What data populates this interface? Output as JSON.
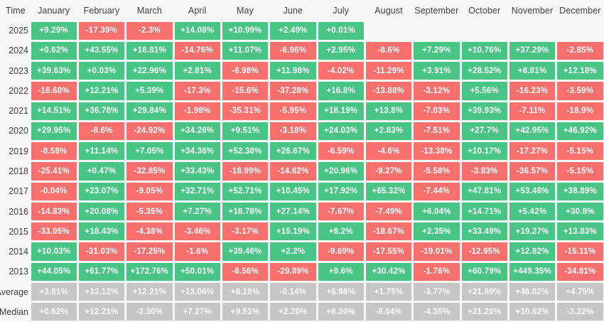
{
  "colors": {
    "positive": "#48c585",
    "negative": "#f7706e",
    "stat": "#c6c6c6",
    "background": "#f7f7f8",
    "cell_text": "#ffffff",
    "label_text": "#3f3f3f"
  },
  "chart_data": {
    "type": "heatmap",
    "corner_label": "Time",
    "categories": [
      "January",
      "February",
      "March",
      "April",
      "May",
      "June",
      "July",
      "August",
      "September",
      "October",
      "November",
      "December"
    ],
    "value_encoding": "monthly percent return; green = positive, red = negative, gray = summary rows, blank = no data",
    "rows": [
      {
        "label": "2025",
        "type": "year",
        "values": [
          "+9.29%",
          "-17.39%",
          "-2.3%",
          "+14.08%",
          "+10.99%",
          "+2.49%",
          "+0.01%",
          "",
          "",
          "",
          "",
          ""
        ]
      },
      {
        "label": "2024",
        "type": "year",
        "values": [
          "+0.62%",
          "+43.55%",
          "+16.81%",
          "-14.76%",
          "+11.07%",
          "-6.96%",
          "+2.95%",
          "-8.6%",
          "+7.29%",
          "+10.76%",
          "+37.29%",
          "-2.85%"
        ]
      },
      {
        "label": "2023",
        "type": "year",
        "values": [
          "+39.63%",
          "+0.03%",
          "+22.96%",
          "+2.81%",
          "-6.98%",
          "+11.98%",
          "-4.02%",
          "-11.29%",
          "+3.91%",
          "+28.52%",
          "+8.81%",
          "+12.18%"
        ]
      },
      {
        "label": "2022",
        "type": "year",
        "values": [
          "-16.68%",
          "+12.21%",
          "+5.39%",
          "-17.3%",
          "-15.6%",
          "-37.28%",
          "+16.8%",
          "-13.88%",
          "-3.12%",
          "+5.56%",
          "-16.23%",
          "-3.59%"
        ]
      },
      {
        "label": "2021",
        "type": "year",
        "values": [
          "+14.51%",
          "+36.78%",
          "+29.84%",
          "-1.98%",
          "-35.31%",
          "-5.95%",
          "+18.19%",
          "+13.8%",
          "-7.03%",
          "+39.93%",
          "-7.11%",
          "-18.9%"
        ]
      },
      {
        "label": "2020",
        "type": "year",
        "values": [
          "+29.95%",
          "-8.6%",
          "-24.92%",
          "+34.26%",
          "+9.51%",
          "-3.18%",
          "+24.03%",
          "+2.83%",
          "-7.51%",
          "+27.7%",
          "+42.95%",
          "+46.92%"
        ]
      },
      {
        "label": "2019",
        "type": "year",
        "values": [
          "-8.58%",
          "+11.14%",
          "+7.05%",
          "+34.36%",
          "+52.38%",
          "+26.67%",
          "-6.59%",
          "-4.6%",
          "-13.38%",
          "+10.17%",
          "-17.27%",
          "-5.15%"
        ]
      },
      {
        "label": "2018",
        "type": "year",
        "values": [
          "-25.41%",
          "+0.47%",
          "-32.85%",
          "+33.43%",
          "-18.99%",
          "-14.62%",
          "+20.96%",
          "-9.27%",
          "-5.58%",
          "-3.83%",
          "-36.57%",
          "-5.15%"
        ]
      },
      {
        "label": "2017",
        "type": "year",
        "values": [
          "-0.04%",
          "+23.07%",
          "-9.05%",
          "+32.71%",
          "+52.71%",
          "+10.45%",
          "+17.92%",
          "+65.32%",
          "-7.44%",
          "+47.81%",
          "+53.48%",
          "+38.89%"
        ]
      },
      {
        "label": "2016",
        "type": "year",
        "values": [
          "-14.83%",
          "+20.08%",
          "-5.35%",
          "+7.27%",
          "+18.78%",
          "+27.14%",
          "-7.67%",
          "-7.49%",
          "+6.04%",
          "+14.71%",
          "+5.42%",
          "+30.8%"
        ]
      },
      {
        "label": "2015",
        "type": "year",
        "values": [
          "-33.05%",
          "+18.43%",
          "-4.38%",
          "-3.46%",
          "-3.17%",
          "+15.19%",
          "+8.2%",
          "-18.67%",
          "+2.35%",
          "+33.49%",
          "+19.27%",
          "+13.83%"
        ]
      },
      {
        "label": "2014",
        "type": "year",
        "values": [
          "+10.03%",
          "-31.03%",
          "-17.25%",
          "-1.6%",
          "+39.46%",
          "+2.2%",
          "-9.69%",
          "-17.55%",
          "-19.01%",
          "-12.95%",
          "+12.82%",
          "-15.11%"
        ]
      },
      {
        "label": "2013",
        "type": "year",
        "values": [
          "+44.05%",
          "+61.77%",
          "+172.76%",
          "+50.01%",
          "-8.56%",
          "-29.89%",
          "+9.6%",
          "+30.42%",
          "-1.76%",
          "+60.79%",
          "+449.35%",
          "-34.81%"
        ]
      },
      {
        "label": "Average",
        "type": "stat",
        "values": [
          "+3.81%",
          "+13.12%",
          "+12.21%",
          "+13.06%",
          "+8.18%",
          "-0.14%",
          "+6.98%",
          "+1.75%",
          "-3.77%",
          "+21.89%",
          "+46.02%",
          "+4.75%"
        ]
      },
      {
        "label": "Median",
        "type": "stat",
        "values": [
          "+0.62%",
          "+12.21%",
          "-2.30%",
          "+7.27%",
          "+9.51%",
          "+2.20%",
          "+8.20%",
          "-8.04%",
          "-4.35%",
          "+21.20%",
          "+10.82%",
          "-3.22%"
        ]
      }
    ]
  }
}
